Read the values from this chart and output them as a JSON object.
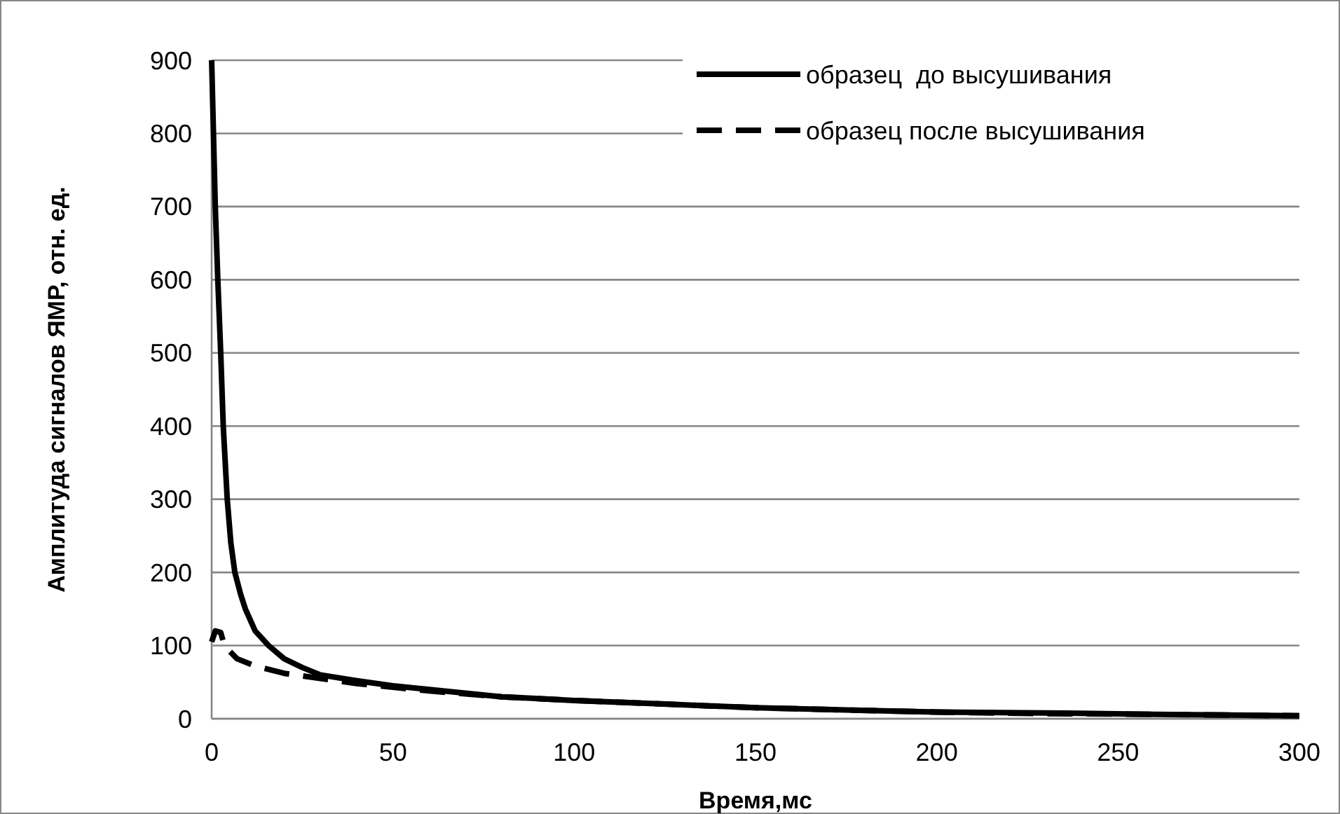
{
  "chart_data": {
    "type": "line",
    "xlabel": "Время,мс",
    "ylabel": "Амплитуда сигналов ЯМР, отн. ед.",
    "xlim": [
      0,
      300
    ],
    "ylim": [
      0,
      900
    ],
    "xticks": [
      0,
      50,
      100,
      150,
      200,
      250,
      300
    ],
    "yticks": [
      0,
      100,
      200,
      300,
      400,
      500,
      600,
      700,
      800,
      900
    ],
    "grid": "y",
    "legend": "top right",
    "marker": "none",
    "series": [
      {
        "name": "образец  до высушивания",
        "color": "#000000",
        "line_style": "solid",
        "x": [
          0,
          0.5,
          1,
          1.7,
          2.5,
          3.2,
          4.3,
          5.3,
          6.4,
          8,
          9.3,
          12,
          15.7,
          20,
          25,
          30,
          40,
          50,
          60,
          80,
          100,
          125,
          150,
          175,
          200,
          230,
          260,
          300
        ],
        "values": [
          900,
          800,
          700,
          600,
          500,
          400,
          300,
          240,
          200,
          170,
          150,
          120,
          100,
          82,
          70,
          60,
          52,
          45,
          40,
          30,
          25,
          20,
          15,
          12,
          9,
          8,
          6,
          4
        ]
      },
      {
        "name": "образец после высушивания",
        "color": "#000000",
        "line_style": "dashed",
        "x": [
          0,
          1,
          2.5,
          3.5,
          7,
          12,
          20,
          30,
          40,
          50,
          60,
          80,
          100,
          125,
          150,
          175,
          200,
          230,
          260,
          300
        ],
        "values": [
          105,
          120,
          118,
          100,
          82,
          72,
          62,
          55,
          48,
          43,
          38,
          30,
          25,
          20,
          15,
          12,
          9,
          7,
          6,
          4
        ]
      }
    ]
  }
}
